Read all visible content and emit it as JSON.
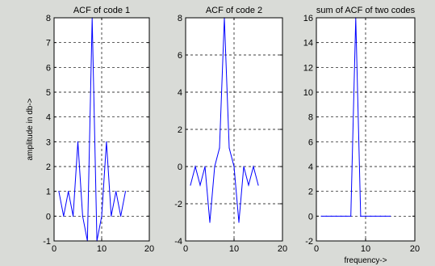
{
  "figure": {
    "background": "#d9dbd7",
    "axes_background": "#ffffff",
    "line_color": "#0000ff"
  },
  "chart_data": [
    {
      "type": "line",
      "title": "ACF of code 1",
      "xlabel": "",
      "ylabel": "amplitude in db->",
      "xlim": [
        0,
        20
      ],
      "ylim": [
        -1,
        8
      ],
      "xticks": [
        0,
        10,
        20
      ],
      "yticks": [
        -1,
        0,
        1,
        2,
        3,
        4,
        5,
        6,
        7,
        8
      ],
      "grid": true,
      "series": [
        {
          "x": [
            1,
            2,
            3,
            4,
            5,
            6,
            7,
            8,
            9,
            10,
            11,
            12,
            13,
            14,
            15
          ],
          "y": [
            1,
            0,
            1,
            0,
            3,
            0,
            -1,
            8,
            -1,
            0,
            3,
            0,
            1,
            0,
            1
          ]
        }
      ]
    },
    {
      "type": "line",
      "title": "ACF of code 2",
      "xlabel": "",
      "ylabel": "",
      "xlim": [
        0,
        20
      ],
      "ylim": [
        -4,
        8
      ],
      "xticks": [
        0,
        10,
        20
      ],
      "yticks": [
        -4,
        -2,
        0,
        2,
        4,
        6,
        8
      ],
      "grid": true,
      "series": [
        {
          "x": [
            1,
            2,
            3,
            4,
            5,
            6,
            7,
            8,
            9,
            10,
            11,
            12,
            13,
            14,
            15
          ],
          "y": [
            -1,
            0,
            -1,
            0,
            -3,
            0,
            1,
            8,
            1,
            0,
            -3,
            0,
            -1,
            0,
            -1
          ]
        }
      ]
    },
    {
      "type": "line",
      "title": "sum of ACF of two codes",
      "xlabel": "frequency->",
      "ylabel": "",
      "xlim": [
        0,
        20
      ],
      "ylim": [
        -2,
        16
      ],
      "xticks": [
        0,
        10,
        20
      ],
      "yticks": [
        -2,
        0,
        2,
        4,
        6,
        8,
        10,
        12,
        14,
        16
      ],
      "grid": true,
      "series": [
        {
          "x": [
            1,
            2,
            3,
            4,
            5,
            6,
            7,
            8,
            9,
            10,
            11,
            12,
            13,
            14,
            15
          ],
          "y": [
            0,
            0,
            0,
            0,
            0,
            0,
            0,
            16,
            0,
            0,
            0,
            0,
            0,
            0,
            0
          ]
        }
      ]
    }
  ]
}
